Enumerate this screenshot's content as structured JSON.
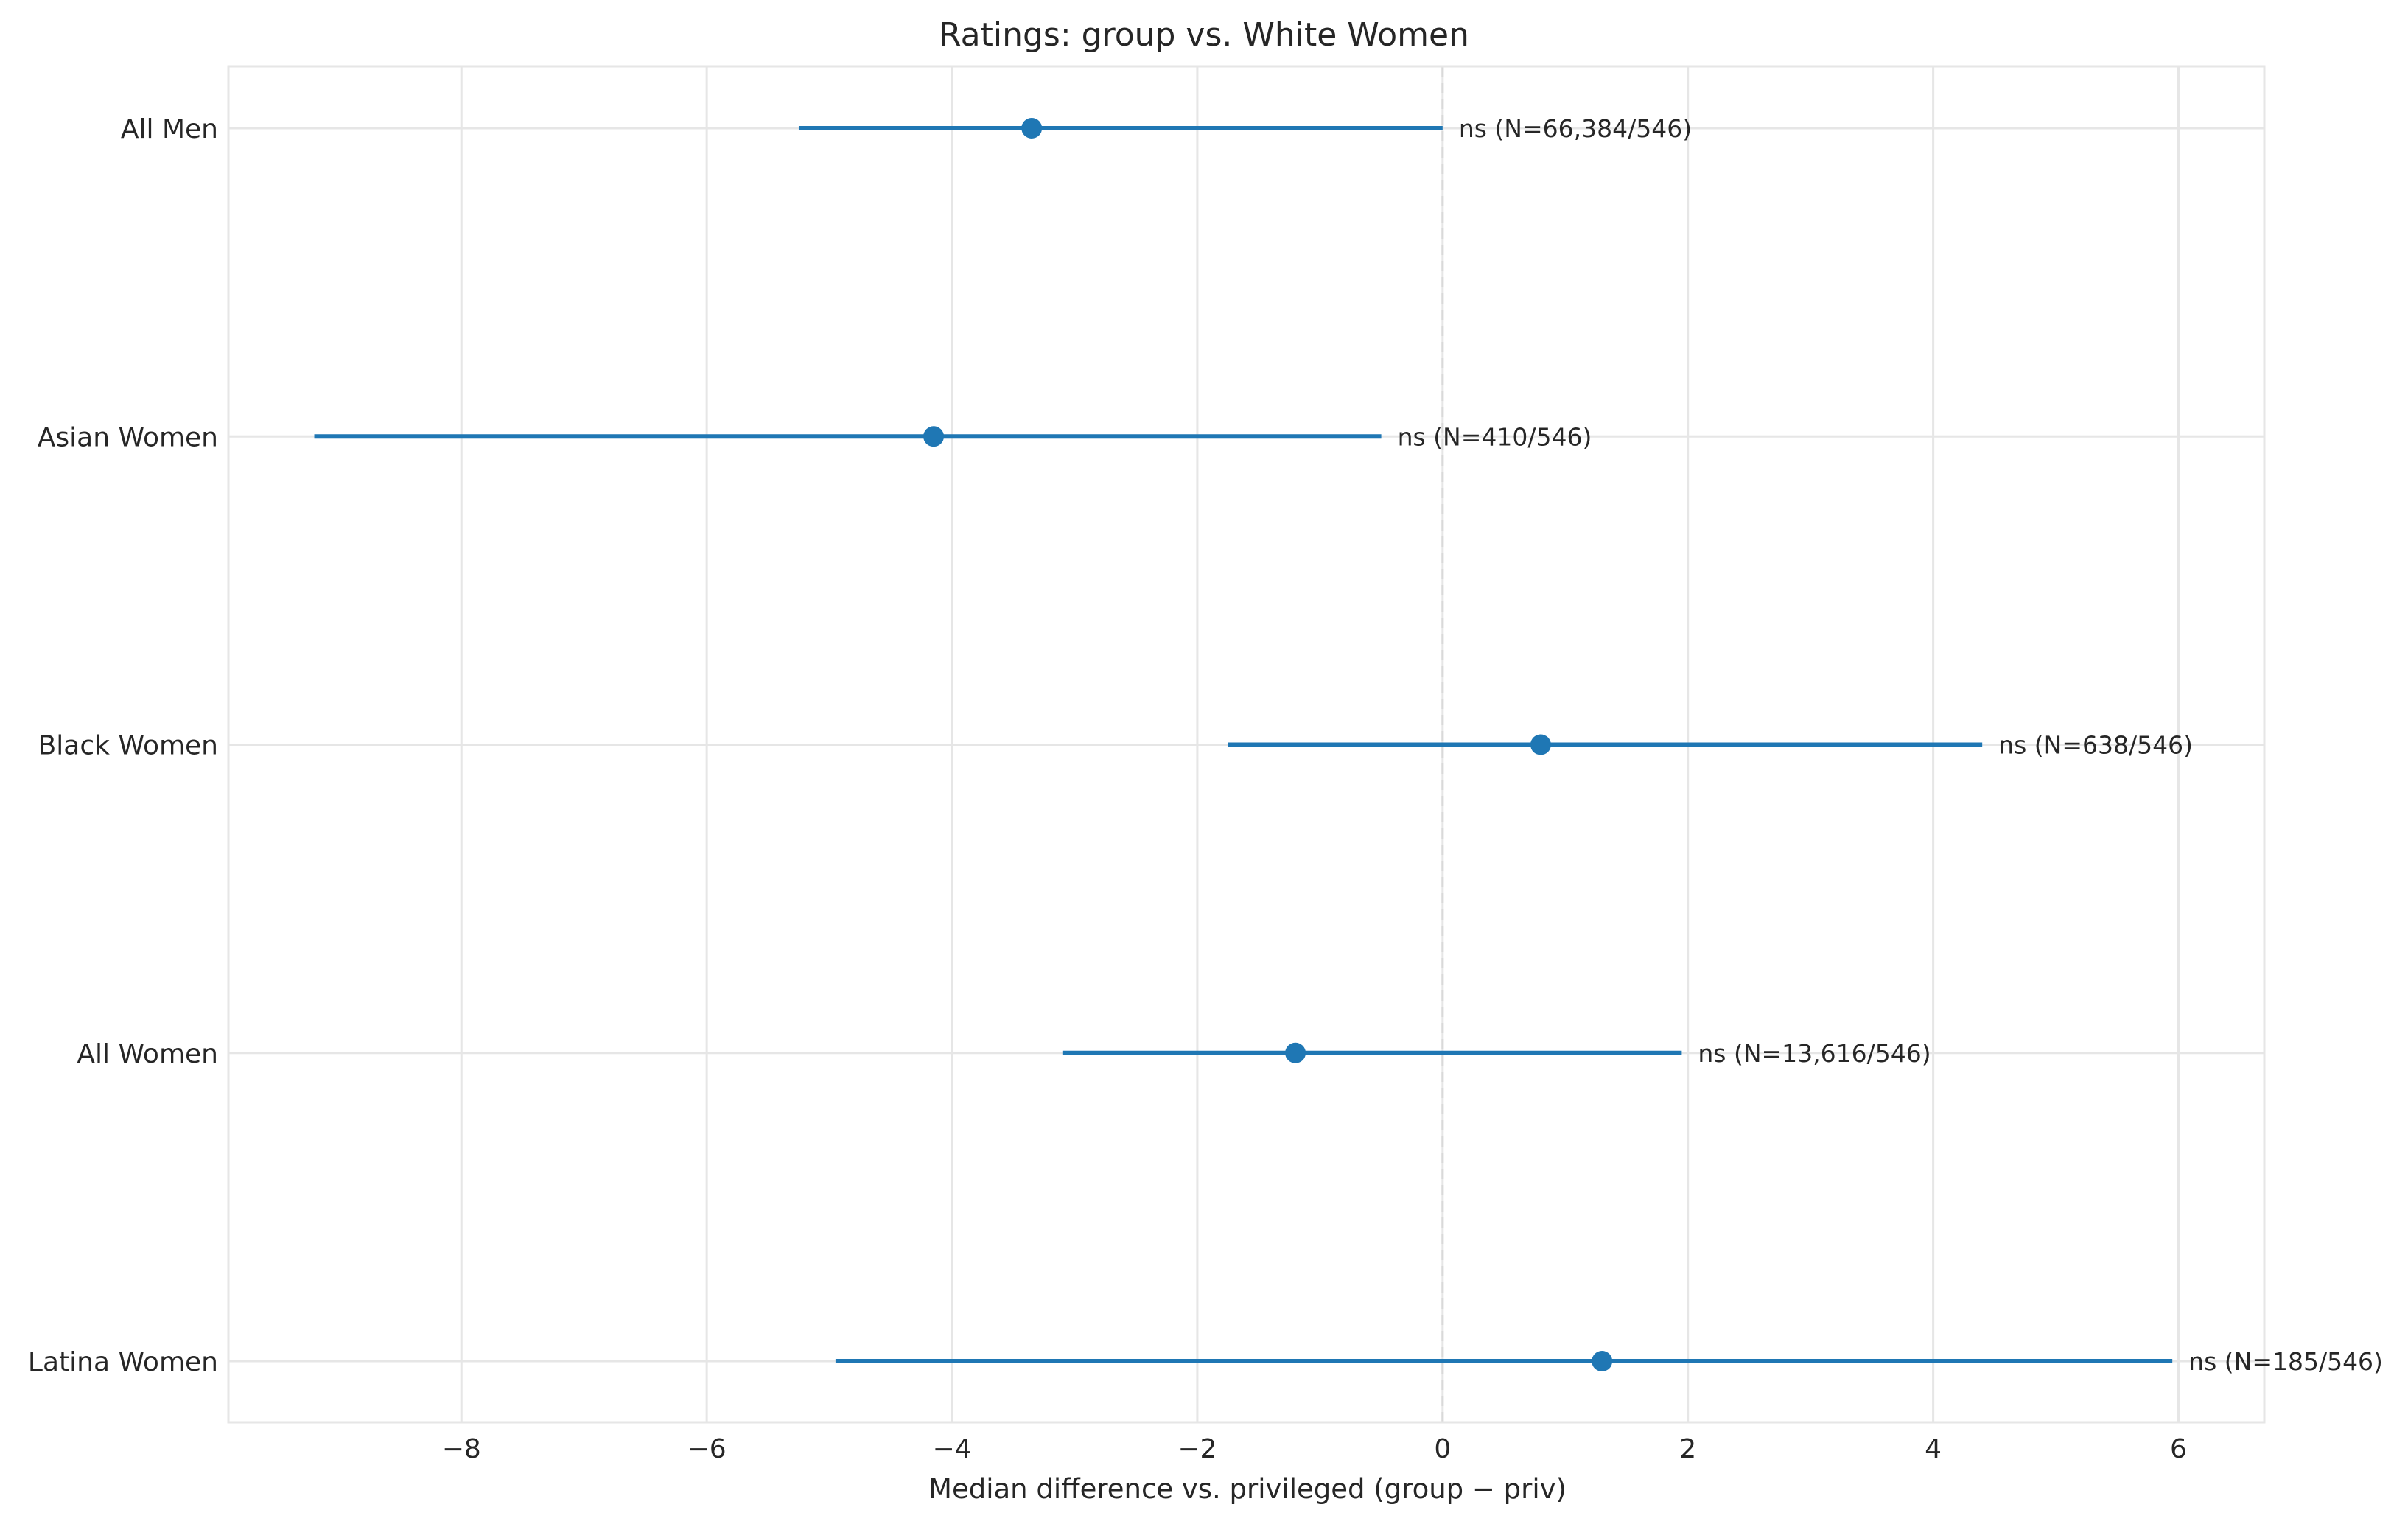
{
  "chart_data": {
    "type": "scatter",
    "subtype": "forest-plot",
    "title": "Ratings: group vs. White Women",
    "xlabel": "Median difference vs. privileged (group − priv)",
    "ylabel": "",
    "xlim": [
      -9.9,
      6.7
    ],
    "xticks": [
      -8,
      -6,
      -4,
      -2,
      0,
      2,
      4,
      6
    ],
    "xtick_labels": [
      "−8",
      "−6",
      "−4",
      "−2",
      "0",
      "2",
      "4",
      "6"
    ],
    "reference_line_x": 0,
    "grid": true,
    "color": "#1f77b4",
    "rows": [
      {
        "label": "All Men",
        "estimate": -3.35,
        "ci_low": -5.25,
        "ci_high": 0.0,
        "annotation": "ns  (N=66,384/546)"
      },
      {
        "label": "Asian Women",
        "estimate": -4.15,
        "ci_low": -9.2,
        "ci_high": -0.5,
        "annotation": "ns  (N=410/546)"
      },
      {
        "label": "Black Women",
        "estimate": 0.8,
        "ci_low": -1.75,
        "ci_high": 4.4,
        "annotation": "ns  (N=638/546)"
      },
      {
        "label": "All Women",
        "estimate": -1.2,
        "ci_low": -3.1,
        "ci_high": 1.95,
        "annotation": "ns  (N=13,616/546)"
      },
      {
        "label": "Latina Women",
        "estimate": 1.3,
        "ci_low": -4.95,
        "ci_high": 5.95,
        "annotation": "ns  (N=185/546)"
      }
    ]
  }
}
